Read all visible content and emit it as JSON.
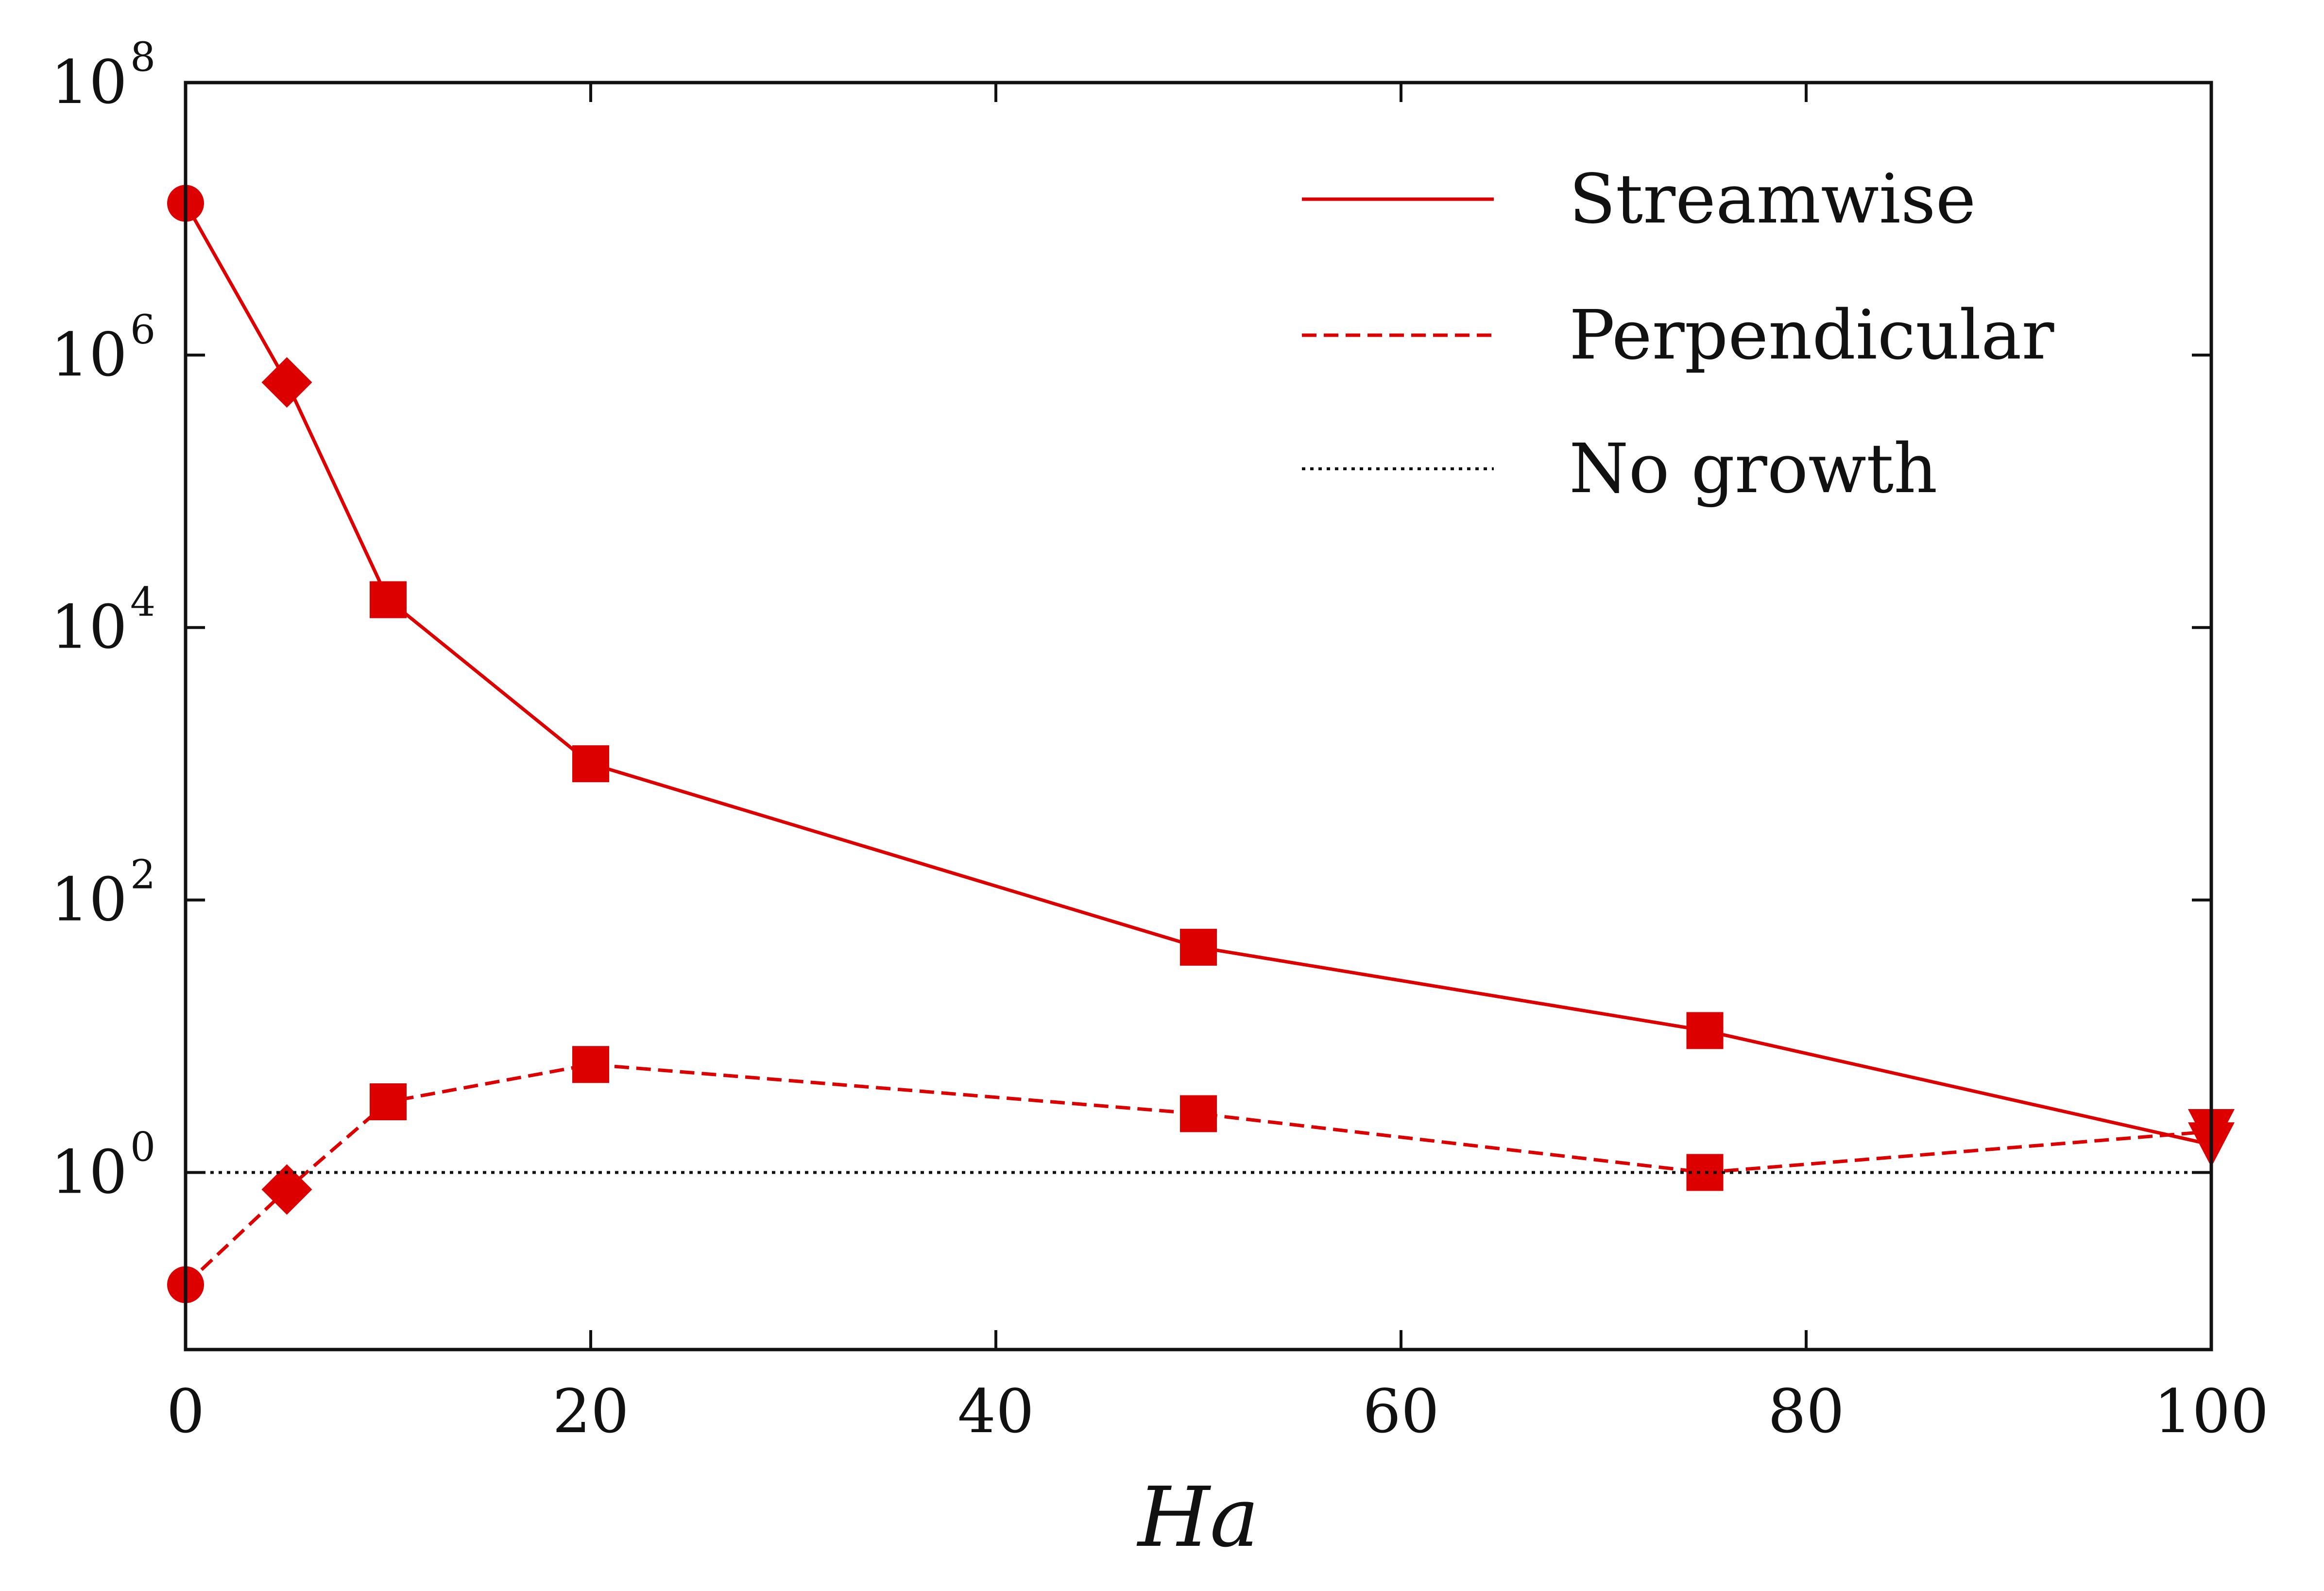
{
  "chart_data": {
    "type": "line",
    "xlabel": "Ha",
    "ylabel": "",
    "xlim": [
      0,
      100
    ],
    "ylim_log10": [
      -1.3,
      8
    ],
    "y_scale": "log",
    "x_ticks": [
      0,
      20,
      40,
      60,
      80,
      100
    ],
    "y_ticks": [
      {
        "base": "10",
        "exp": "0",
        "value": 1
      },
      {
        "base": "10",
        "exp": "2",
        "value": 100
      },
      {
        "base": "10",
        "exp": "4",
        "value": 10000
      },
      {
        "base": "10",
        "exp": "6",
        "value": 1000000
      },
      {
        "base": "10",
        "exp": "8",
        "value": 100000000
      }
    ],
    "legend_position": "top-right",
    "series": [
      {
        "name": "Streamwise",
        "linestyle": "solid",
        "color": "#dd0000",
        "points": [
          {
            "x": 0,
            "y": 13000000,
            "marker": "circle"
          },
          {
            "x": 5,
            "y": 630000,
            "marker": "diamond"
          },
          {
            "x": 10,
            "y": 16000,
            "marker": "square"
          },
          {
            "x": 20,
            "y": 1000,
            "marker": "square"
          },
          {
            "x": 50,
            "y": 45,
            "marker": "square"
          },
          {
            "x": 75,
            "y": 11,
            "marker": "square"
          },
          {
            "x": 100,
            "y": 1.6,
            "marker": "triangle-down"
          }
        ]
      },
      {
        "name": "Perpendicular",
        "linestyle": "dashed",
        "color": "#dd0000",
        "points": [
          {
            "x": 0,
            "y": 0.15,
            "marker": "circle"
          },
          {
            "x": 5,
            "y": 0.75,
            "marker": "diamond"
          },
          {
            "x": 10,
            "y": 3.3,
            "marker": "square"
          },
          {
            "x": 20,
            "y": 6.2,
            "marker": "square"
          },
          {
            "x": 50,
            "y": 2.7,
            "marker": "square"
          },
          {
            "x": 75,
            "y": 1.0,
            "marker": "square"
          },
          {
            "x": 100,
            "y": 2.0,
            "marker": "triangle-down"
          }
        ]
      },
      {
        "name": "No growth",
        "linestyle": "dotted",
        "color": "#111111",
        "points": [
          {
            "x": 0,
            "y": 1,
            "marker": "none"
          },
          {
            "x": 100,
            "y": 1,
            "marker": "none"
          }
        ]
      }
    ]
  }
}
